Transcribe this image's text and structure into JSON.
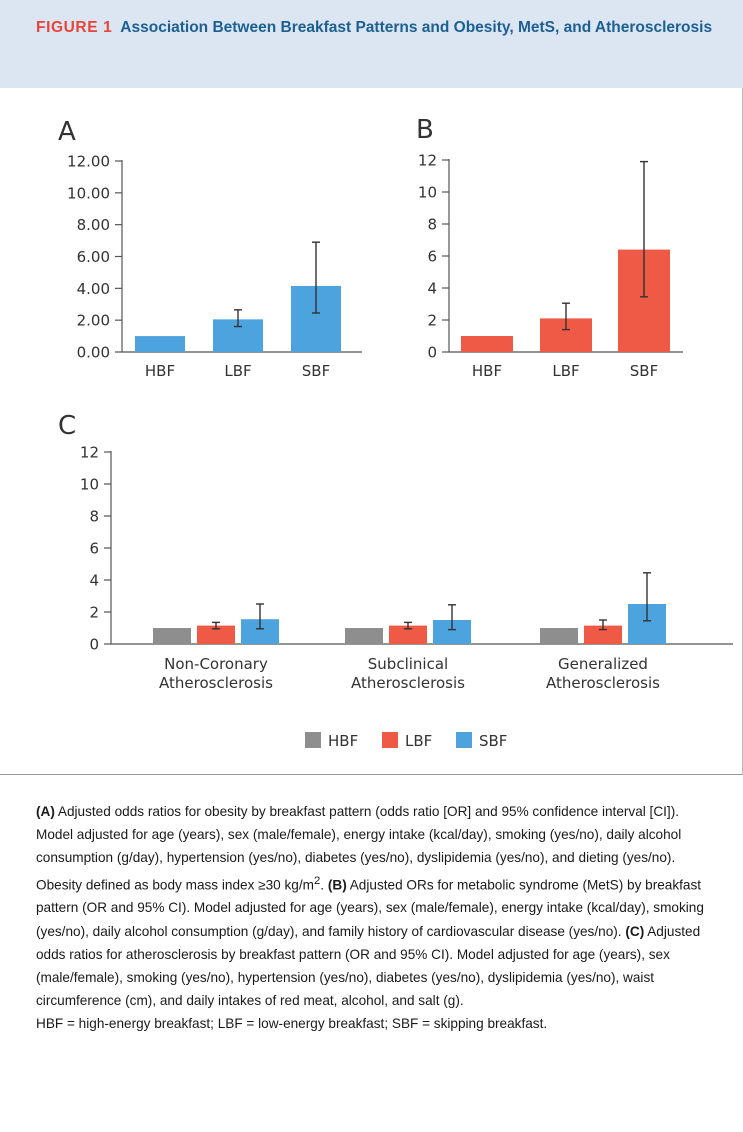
{
  "figure": {
    "label": "FIGURE 1",
    "title": "Association Between Breakfast Patterns and Obesity, MetS, and Atherosclerosis"
  },
  "colors": {
    "hbf": "#8e8e8e",
    "lbf": "#ef5a47",
    "sbf": "#4ca3dd",
    "axis": "#555555",
    "text": "#333333"
  },
  "chart_data": [
    {
      "panel": "A",
      "type": "bar",
      "categories": [
        "HBF",
        "LBF",
        "SBF"
      ],
      "values": [
        1.0,
        2.05,
        4.15
      ],
      "ci_low": [
        1.0,
        1.6,
        2.45
      ],
      "ci_high": [
        1.0,
        2.65,
        6.9
      ],
      "ylim": [
        0,
        12
      ],
      "yticks": [
        0,
        2,
        4,
        6,
        8,
        10,
        12
      ],
      "ytick_labels": [
        "0.00",
        "2.00",
        "4.00",
        "6.00",
        "8.00",
        "10.00",
        "12.00"
      ],
      "color": "#4ca3dd"
    },
    {
      "panel": "B",
      "type": "bar",
      "categories": [
        "HBF",
        "LBF",
        "SBF"
      ],
      "values": [
        1.0,
        2.1,
        6.4
      ],
      "ci_low": [
        1.0,
        1.4,
        3.45
      ],
      "ci_high": [
        1.0,
        3.05,
        11.9
      ],
      "ylim": [
        0,
        12
      ],
      "yticks": [
        0,
        2,
        4,
        6,
        8,
        10,
        12
      ],
      "ytick_labels": [
        "0",
        "2",
        "4",
        "6",
        "8",
        "10",
        "12"
      ],
      "color": "#ef5a47"
    },
    {
      "panel": "C",
      "type": "bar",
      "categories": [
        [
          "Non-Coronary",
          "Atherosclerosis"
        ],
        [
          "Subclinical",
          "Atherosclerosis"
        ],
        [
          "Generalized",
          "Atherosclerosis"
        ]
      ],
      "ylim": [
        0,
        12
      ],
      "yticks": [
        0,
        2,
        4,
        6,
        8,
        10,
        12
      ],
      "ytick_labels": [
        "0",
        "2",
        "4",
        "6",
        "8",
        "10",
        "12"
      ],
      "series": [
        {
          "name": "HBF",
          "color": "#8e8e8e",
          "values": [
            1.0,
            1.0,
            1.0
          ],
          "ci_low": [
            1.0,
            1.0,
            1.0
          ],
          "ci_high": [
            1.0,
            1.0,
            1.0
          ]
        },
        {
          "name": "LBF",
          "color": "#ef5a47",
          "values": [
            1.15,
            1.15,
            1.15
          ],
          "ci_low": [
            0.95,
            0.95,
            0.9
          ],
          "ci_high": [
            1.35,
            1.35,
            1.5
          ]
        },
        {
          "name": "SBF",
          "color": "#4ca3dd",
          "values": [
            1.55,
            1.5,
            2.5
          ],
          "ci_low": [
            0.95,
            0.9,
            1.45
          ],
          "ci_high": [
            2.5,
            2.45,
            4.45
          ]
        }
      ],
      "legend": [
        "HBF",
        "LBF",
        "SBF"
      ],
      "legend_position": "bottom-center"
    }
  ],
  "caption": {
    "a_label": "(A)",
    "a_text": " Adjusted odds ratios for obesity by breakfast pattern (odds ratio [OR] and 95% confidence interval [CI]). Model adjusted for age (years), sex (male/female), energy intake (kcal/day), smoking (yes/no), daily alcohol consumption (g/day), hypertension (yes/no), diabetes (yes/no), dyslipidemia (yes/no), and dieting (yes/no). Obesity defined as body mass index ≥30 kg/m",
    "a_sup": "2",
    "a_end": ". ",
    "b_label": "(B)",
    "b_text": " Adjusted ORs for metabolic syndrome (MetS) by breakfast pattern (OR and 95% CI). Model adjusted for age (years), sex (male/female), energy intake (kcal/day), smoking (yes/no), daily alcohol consumption (g/day), and family history of cardiovascular disease (yes/no). ",
    "c_label": "(C)",
    "c_text": " Adjusted odds ratios for atherosclerosis by breakfast pattern (OR and 95% CI). Model adjusted for age (years), sex (male/female), smoking (yes/no), hypertension (yes/no), diabetes (yes/no), dyslipidemia (yes/no), waist circumference (cm), and daily intakes of red meat, alcohol, and salt (g).",
    "abbrev": "HBF = high-energy breakfast; LBF = low-energy breakfast; SBF = skipping breakfast."
  }
}
